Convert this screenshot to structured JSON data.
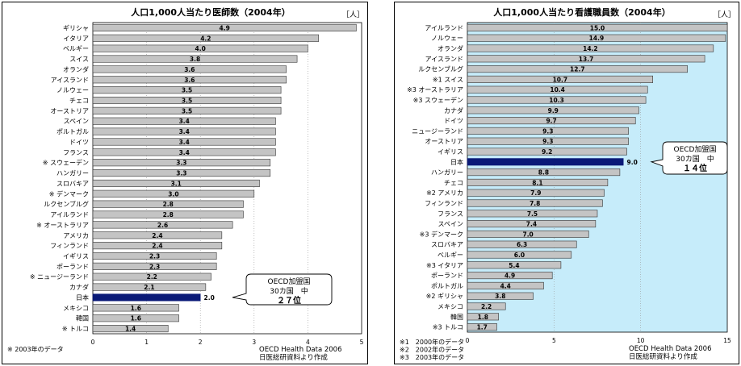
{
  "chart_data": [
    {
      "type": "bar",
      "orientation": "horizontal",
      "title": "人口1,000人当たり医師数（2004年）",
      "unit": "［人］",
      "categories": [
        "ギリシャ",
        "イタリア",
        "ベルギー",
        "スイス",
        "オランダ",
        "アイスランド",
        "ノルウェー",
        "チェコ",
        "オーストリア",
        "スペイン",
        "ポルトガル",
        "ドイツ",
        "フランス",
        "※ スウェーデン",
        "ハンガリー",
        "スロバキア",
        "※ デンマーク",
        "ルクセンブルグ",
        "アイルランド",
        "※ オーストラリア",
        "アメリカ",
        "フィンランド",
        "イギリス",
        "ポーランド",
        "※ ニュージーランド",
        "カナダ",
        "日本",
        "メキシコ",
        "韓国",
        "※ トルコ"
      ],
      "values": [
        4.9,
        4.2,
        4.0,
        3.8,
        3.6,
        3.6,
        3.5,
        3.5,
        3.5,
        3.4,
        3.4,
        3.4,
        3.4,
        3.3,
        3.3,
        3.1,
        3.0,
        2.8,
        2.8,
        2.6,
        2.4,
        2.4,
        2.3,
        2.3,
        2.2,
        2.1,
        2.0,
        1.6,
        1.6,
        1.4
      ],
      "value_labels": [
        "4.9",
        "4.2",
        "4.0",
        "3.8",
        "3.6",
        "3.6",
        "3.5",
        "3.5",
        "3.5",
        "3.4",
        "3.4",
        "3.4",
        "3.4",
        "3.3",
        "3.3",
        "3.1",
        "3.0",
        "2.8",
        "2.8",
        "2.6",
        "2.4",
        "2.4",
        "2.3",
        "2.3",
        "2.2",
        "2.1",
        "2.0",
        "1.6",
        "1.6",
        "1.4"
      ],
      "highlight_index": 26,
      "xlim": [
        0,
        5
      ],
      "xticks": [
        0,
        1,
        2,
        3,
        4,
        5
      ],
      "grid": true,
      "callout": [
        "OECD加盟国",
        "30カ国　中",
        "２７位"
      ],
      "footnotes_left": [
        "※ 2003年のデータ"
      ],
      "source": [
        "OECD Health Data 2006",
        "日医総研資料より作成"
      ]
    },
    {
      "type": "bar",
      "orientation": "horizontal",
      "title": "人口1,000人当たり看護職員数（2004年）",
      "unit": "［人］",
      "categories": [
        "アイルランド",
        "ノルウェー",
        "オランダ",
        "アイスランド",
        "ルクセンブルグ",
        "※1 スイス",
        "※3 オーストラリア",
        "※3 スウェーデン",
        "カナダ",
        "ドイツ",
        "ニュージーランド",
        "オーストリア",
        "イギリス",
        "日本",
        "ハンガリー",
        "チェコ",
        "※2 アメリカ",
        "フィンランド",
        "フランス",
        "スペイン",
        "※3 デンマーク",
        "スロバキア",
        "ベルギー",
        "※3 イタリア",
        "ポーランド",
        "ポルトガル",
        "※2 ギリシャ",
        "メキシコ",
        "韓国",
        "※3 トルコ"
      ],
      "values": [
        15.0,
        14.9,
        14.2,
        13.7,
        12.7,
        10.7,
        10.4,
        10.3,
        9.9,
        9.7,
        9.3,
        9.3,
        9.2,
        9.0,
        8.8,
        8.1,
        7.9,
        7.8,
        7.5,
        7.4,
        7.0,
        6.3,
        6.0,
        5.4,
        4.9,
        4.4,
        3.8,
        2.2,
        1.8,
        1.7
      ],
      "value_labels": [
        "15.0",
        "14.9",
        "14.2",
        "13.7",
        "12.7",
        "10.7",
        "10.4",
        "10.3",
        "9.9",
        "9.7",
        "9.3",
        "9.3",
        "9.2",
        "9.0",
        "8.8",
        "8.1",
        "7.9",
        "7.8",
        "7.5",
        "7.4",
        "7.0",
        "6.3",
        "6.0",
        "5.4",
        "4.9",
        "4.4",
        "3.8",
        "2.2",
        "1.8",
        "1.7"
      ],
      "highlight_index": 13,
      "xlim": [
        0,
        15
      ],
      "xticks": [
        0,
        5,
        10,
        15
      ],
      "grid": true,
      "callout": [
        "OECD加盟国",
        "30カ国　中",
        "１４位"
      ],
      "footnotes_left": [
        "※1　2000年のデータ",
        "※2　2002年のデータ",
        "※3　2003年のデータ"
      ],
      "source": [
        "OECD Health Data 2006",
        "日医総研資料より作成"
      ]
    }
  ],
  "colors": {
    "bar": "#c4c4c4",
    "bar_edge": "#333333",
    "highlight": "#0a1a78",
    "plot_bg_left": "#ffffff",
    "plot_bg_right": "#c6ecfa",
    "grid": "#9a9a9a"
  }
}
